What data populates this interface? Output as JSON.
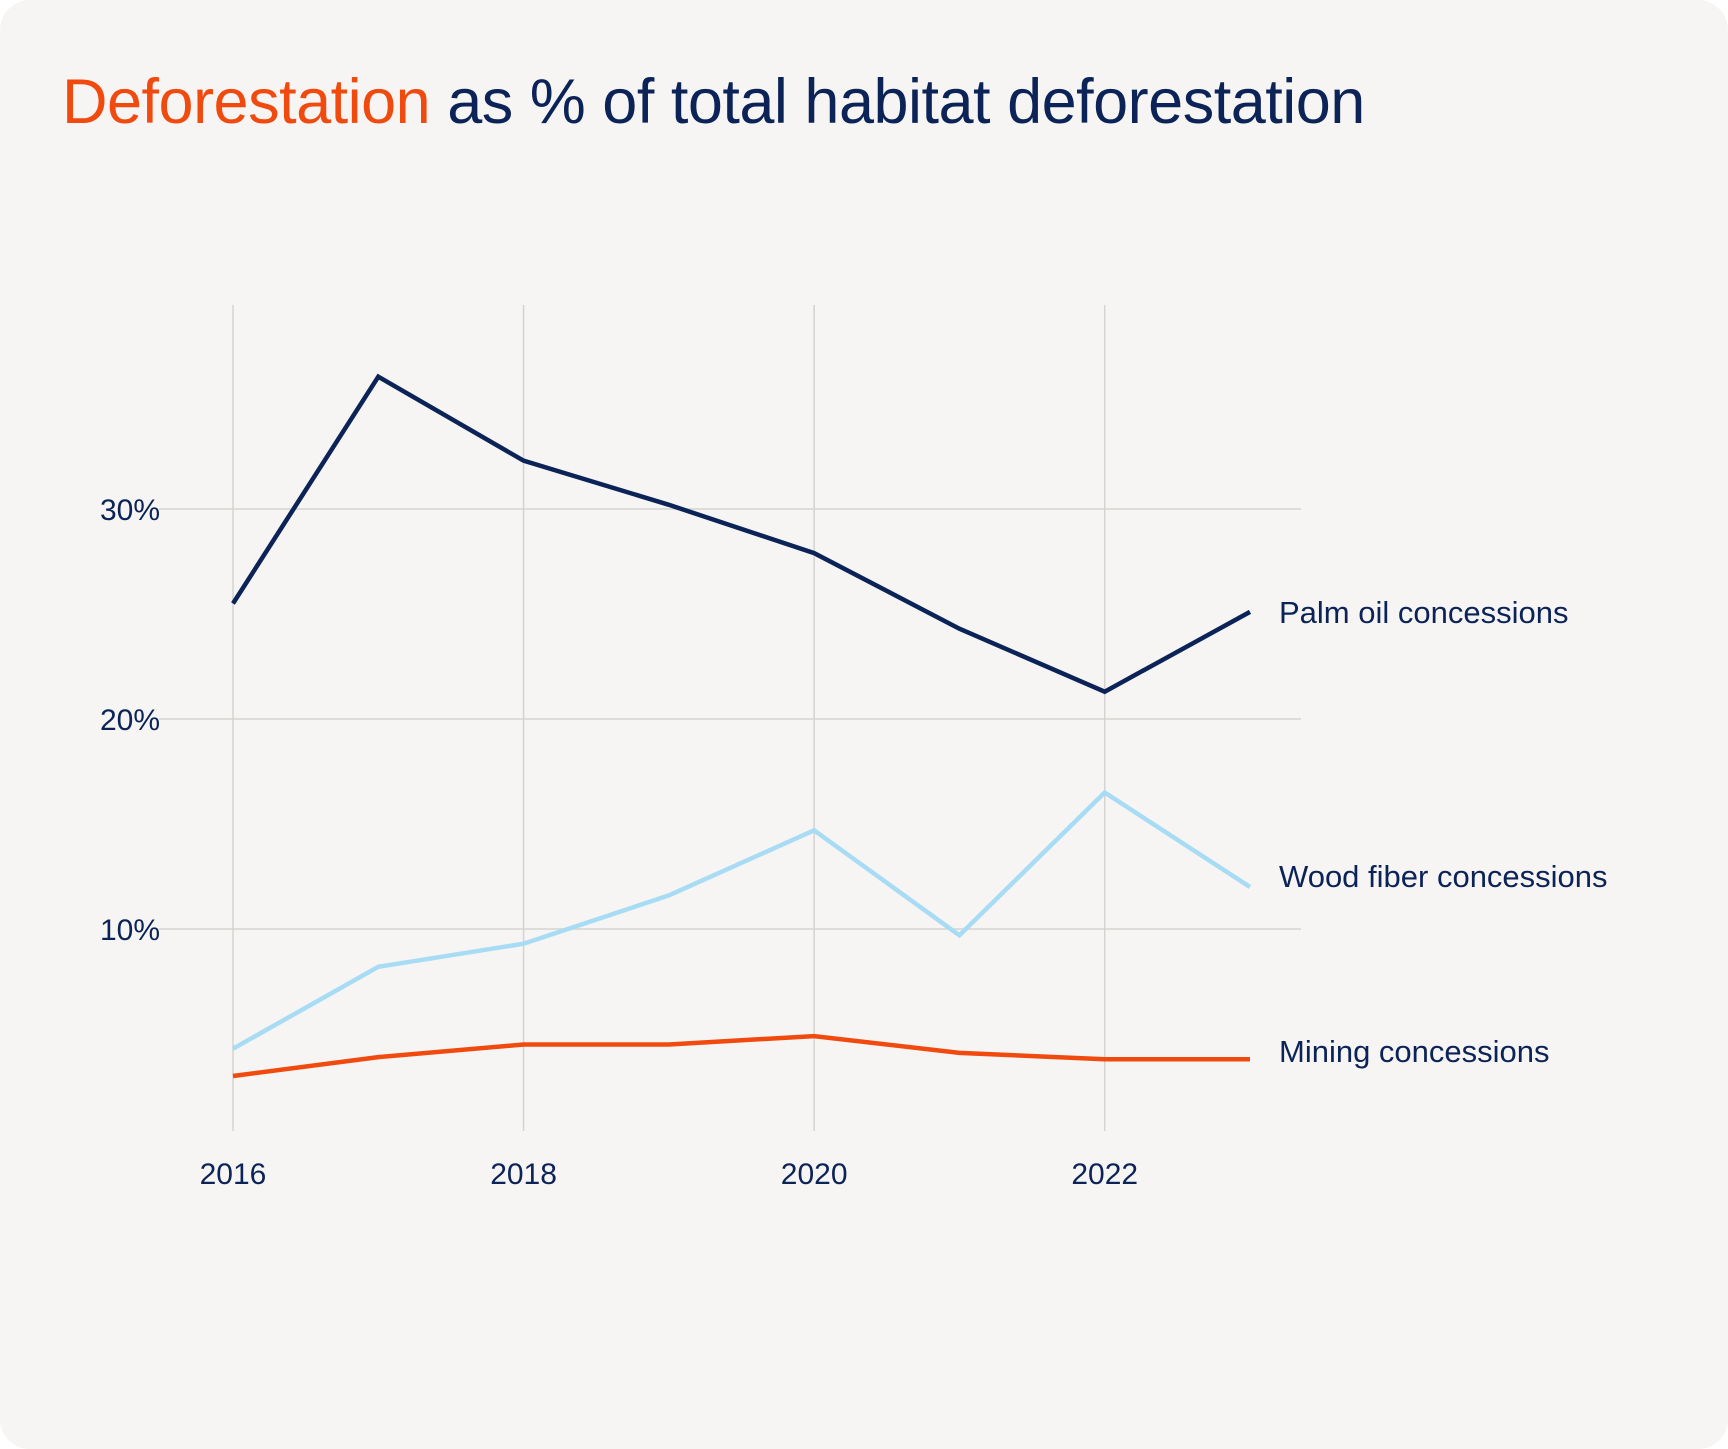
{
  "title": {
    "highlight": "Deforestation",
    "rest": " as % of total habitat deforestation"
  },
  "colors": {
    "background": "#f6f5f3",
    "text": "#0b2357",
    "highlight": "#f04a0f",
    "grid": "#d4d3d0"
  },
  "chart_data": {
    "type": "line",
    "title": "Deforestation as % of total habitat deforestation",
    "xlabel": "",
    "ylabel": "",
    "x": [
      2016,
      2017,
      2018,
      2019,
      2020,
      2021,
      2022,
      2023
    ],
    "xlim": [
      2016,
      2023
    ],
    "ylim": [
      0,
      40
    ],
    "grid": true,
    "x_ticks": [
      2016,
      2018,
      2020,
      2022
    ],
    "x_tick_labels": [
      "2016",
      "2018",
      "2020",
      "2022"
    ],
    "y_ticks": [
      10,
      20,
      30
    ],
    "y_tick_labels": [
      "10%",
      "20%",
      "30%"
    ],
    "legend": "direct labels at right end of lines",
    "series": [
      {
        "name": "Palm oil concessions",
        "color": "#0b2357",
        "values": [
          25.5,
          36.3,
          32.3,
          30.2,
          27.9,
          24.3,
          21.3,
          25.1
        ]
      },
      {
        "name": "Wood fiber concessions",
        "color": "#a8dcf5",
        "values": [
          4.3,
          8.2,
          9.3,
          11.6,
          14.7,
          9.7,
          16.5,
          12.0
        ]
      },
      {
        "name": "Mining concessions",
        "color": "#f04a0f",
        "values": [
          3.0,
          3.9,
          4.5,
          4.5,
          4.9,
          4.1,
          3.8,
          3.8
        ]
      }
    ]
  }
}
